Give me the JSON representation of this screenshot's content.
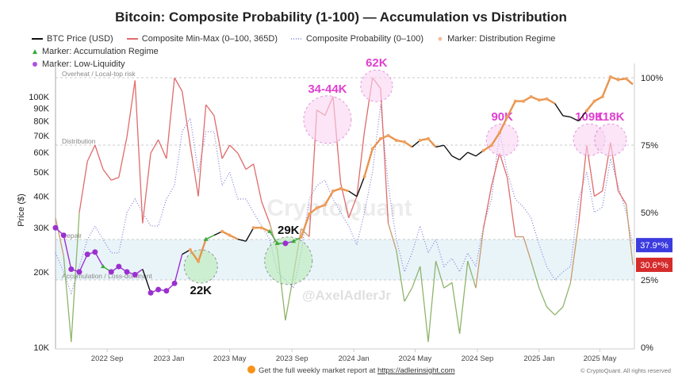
{
  "chart_data": {
    "type": "line",
    "title": "Bitcoin: Composite Probability (1-100) — Accumulation vs Distribution",
    "ylabel": "Price ($)",
    "y_scale": "log",
    "ylim": [
      10000,
      130000
    ],
    "y2lim": [
      0,
      100
    ],
    "y_ticks": [
      "100K",
      "90K",
      "80K",
      "70K",
      "60K",
      "50K",
      "40K",
      "30K",
      "20K",
      "10K"
    ],
    "y_tick_values": [
      100000,
      90000,
      80000,
      70000,
      60000,
      50000,
      40000,
      30000,
      20000,
      10000
    ],
    "y2_ticks": [
      "100%",
      "75%",
      "50%",
      "25%",
      "0%"
    ],
    "y2_tick_values": [
      100,
      75,
      50,
      25,
      0
    ],
    "x_ticks": [
      "2022 Sep",
      "2023 Jan",
      "2023 May",
      "2023 Sep",
      "2024 Jan",
      "2024 May",
      "2024 Sep",
      "2025 Jan",
      "2025 May"
    ],
    "x_tick_dates": [
      "2022-09-01",
      "2023-01-01",
      "2023-05-01",
      "2023-09-01",
      "2024-01-01",
      "2024-05-01",
      "2024-09-01",
      "2025-01-01",
      "2025-05-01"
    ],
    "xlim": [
      "2022-05-22",
      "2025-07-05"
    ],
    "grid": false,
    "legend_position": "top",
    "legend": [
      {
        "label": "BTC Price (USD)",
        "color": "#111111",
        "style": "line"
      },
      {
        "label": "Composite Min-Max (0–100, 365D)",
        "color": "#e06b6b",
        "style": "line"
      },
      {
        "label": "Composite Probability (0–100)",
        "color": "#7b7fd6",
        "style": "dotted"
      },
      {
        "label": "Marker: Distribution Regime",
        "color": "#f0a060",
        "style": "dot"
      },
      {
        "label": "Marker: Accumulation Regime",
        "color": "#3aa83a",
        "style": "triangle"
      },
      {
        "label": "Marker: Low-Liquidity",
        "color": "#9b30d0",
        "style": "dot"
      }
    ],
    "zones": [
      {
        "label": "Overheat / Local-top risk",
        "value": 100
      },
      {
        "label": "Distribution",
        "value": 75
      },
      {
        "label": "Repair",
        "value": 40
      },
      {
        "label": "Accumulation / Loss-dominant",
        "value": 25
      }
    ],
    "dates": [
      "2022-05-22",
      "2022-06-07",
      "2022-06-22",
      "2022-07-08",
      "2022-07-24",
      "2022-08-08",
      "2022-08-24",
      "2022-09-09",
      "2022-09-24",
      "2022-10-10",
      "2022-10-26",
      "2022-11-10",
      "2022-11-26",
      "2022-12-11",
      "2022-12-27",
      "2023-01-12",
      "2023-01-27",
      "2023-02-12",
      "2023-02-28",
      "2023-03-15",
      "2023-03-31",
      "2023-04-16",
      "2023-05-01",
      "2023-05-17",
      "2023-06-02",
      "2023-06-17",
      "2023-07-03",
      "2023-07-19",
      "2023-08-03",
      "2023-08-19",
      "2023-09-04",
      "2023-09-19",
      "2023-10-05",
      "2023-10-20",
      "2023-11-05",
      "2023-11-21",
      "2023-12-06",
      "2023-12-22",
      "2024-01-07",
      "2024-01-22",
      "2024-02-07",
      "2024-02-23",
      "2024-03-09",
      "2024-03-25",
      "2024-04-10",
      "2024-04-25",
      "2024-05-11",
      "2024-05-27",
      "2024-06-11",
      "2024-06-27",
      "2024-07-13",
      "2024-07-28",
      "2024-08-13",
      "2024-08-29",
      "2024-09-13",
      "2024-09-29",
      "2024-10-15",
      "2024-10-30",
      "2024-11-15",
      "2024-12-01",
      "2024-12-16",
      "2025-01-01",
      "2025-01-16",
      "2025-02-01",
      "2025-02-17",
      "2025-03-04",
      "2025-03-20",
      "2025-04-05",
      "2025-04-20",
      "2025-05-06",
      "2025-05-22",
      "2025-06-06",
      "2025-06-22",
      "2025-07-05"
    ],
    "series": [
      {
        "name": "BTC Price (USD)",
        "values": [
          30000,
          28000,
          20500,
          20000,
          23500,
          24000,
          21000,
          20000,
          21000,
          20000,
          19500,
          20500,
          16500,
          17000,
          16800,
          18000,
          23500,
          24500,
          22000,
          27000,
          28000,
          29000,
          28000,
          27000,
          26500,
          30000,
          30000,
          29000,
          26000,
          26000,
          26500,
          27500,
          34000,
          36000,
          37000,
          42000,
          43000,
          42000,
          40000,
          48000,
          62000,
          68000,
          70000,
          67000,
          66000,
          63000,
          67000,
          68000,
          63000,
          64000,
          58000,
          56000,
          60000,
          58000,
          61000,
          64000,
          72000,
          83000,
          96000,
          96000,
          100000,
          97000,
          98000,
          94000,
          84000,
          83000,
          80000,
          88000,
          96000,
          100000,
          120000,
          117000,
          118000,
          112000
        ]
      },
      {
        "name": "Composite Min-Max (0–100, 365D)",
        "values": [
          48,
          34,
          2,
          50,
          69,
          75,
          66,
          62,
          63,
          78,
          99,
          46,
          72,
          77,
          70,
          100,
          95,
          75,
          56,
          90,
          86,
          70,
          75,
          72,
          66,
          68,
          54,
          46,
          36,
          10,
          27,
          44,
          41,
          88,
          86,
          93,
          61,
          48,
          56,
          80,
          100,
          96,
          46,
          36,
          17,
          22,
          30,
          2,
          32,
          22,
          24,
          5,
          32,
          22,
          44,
          60,
          72,
          63,
          41,
          41,
          32,
          22,
          15,
          12,
          15,
          24,
          46,
          75,
          56,
          58,
          76,
          58,
          53,
          30.6
        ]
      },
      {
        "name": "Composite Probability (0–100)",
        "values": [
          35,
          28,
          20,
          30,
          40,
          45,
          40,
          35,
          35,
          50,
          55,
          50,
          45,
          45,
          55,
          60,
          80,
          85,
          65,
          80,
          80,
          60,
          65,
          55,
          55,
          50,
          45,
          40,
          28,
          25,
          22,
          35,
          55,
          60,
          62,
          55,
          50,
          45,
          38,
          50,
          65,
          90,
          60,
          40,
          28,
          35,
          45,
          35,
          40,
          30,
          33,
          28,
          35,
          30,
          45,
          55,
          80,
          65,
          55,
          52,
          48,
          38,
          30,
          25,
          28,
          30,
          55,
          65,
          50,
          52,
          70,
          60,
          50,
          37.9
        ]
      }
    ],
    "price_regime": [
      "L",
      "L",
      "L",
      "L",
      "L",
      "L",
      "A",
      "L",
      "L",
      "L",
      "L",
      "N",
      "L",
      "L",
      "L",
      "L",
      "N",
      "D",
      "D",
      "A",
      "N",
      "D",
      "D",
      "N",
      "N",
      "D",
      "D",
      "A",
      "A",
      "L",
      "A",
      "D",
      "D",
      "D",
      "D",
      "D",
      "D",
      "N",
      "N",
      "D",
      "D",
      "D",
      "D",
      "D",
      "D",
      "N",
      "D",
      "D",
      "N",
      "N",
      "N",
      "N",
      "N",
      "N",
      "D",
      "D",
      "D",
      "D",
      "D",
      "D",
      "D",
      "D",
      "D",
      "N",
      "N",
      "N",
      "N",
      "D",
      "D",
      "D",
      "D",
      "D",
      "D",
      "N"
    ],
    "latest": {
      "composite_probability": "37.9*%",
      "composite_minmax": "30.6*%"
    },
    "annotations": [
      {
        "label": "34-44K",
        "color": "#e040d0",
        "date": "2023-11-10",
        "value": 88
      },
      {
        "label": "62K",
        "color": "#e040d0",
        "date": "2024-02-15",
        "value": 97
      },
      {
        "label": "90K",
        "color": "#e040d0",
        "date": "2024-10-20",
        "value": 77
      },
      {
        "label": "109K",
        "color": "#e040d0",
        "date": "2025-04-10",
        "value": 77
      },
      {
        "label": "118K",
        "color": "#e040d0",
        "date": "2025-05-22",
        "value": 77
      },
      {
        "label": "22K",
        "color": "#111111",
        "date": "2023-03-05",
        "value": 30
      },
      {
        "label": "29K",
        "color": "#111111",
        "date": "2023-08-25",
        "value": 38
      }
    ]
  },
  "watermarks": {
    "brand": "CryptoQuant",
    "author": "@AxelAdlerJr"
  },
  "footer": {
    "text": "Get the full weekly market report at",
    "link": "https://adlerinsight.com",
    "copyright": "© CryptoQuant. All rights reserved"
  }
}
